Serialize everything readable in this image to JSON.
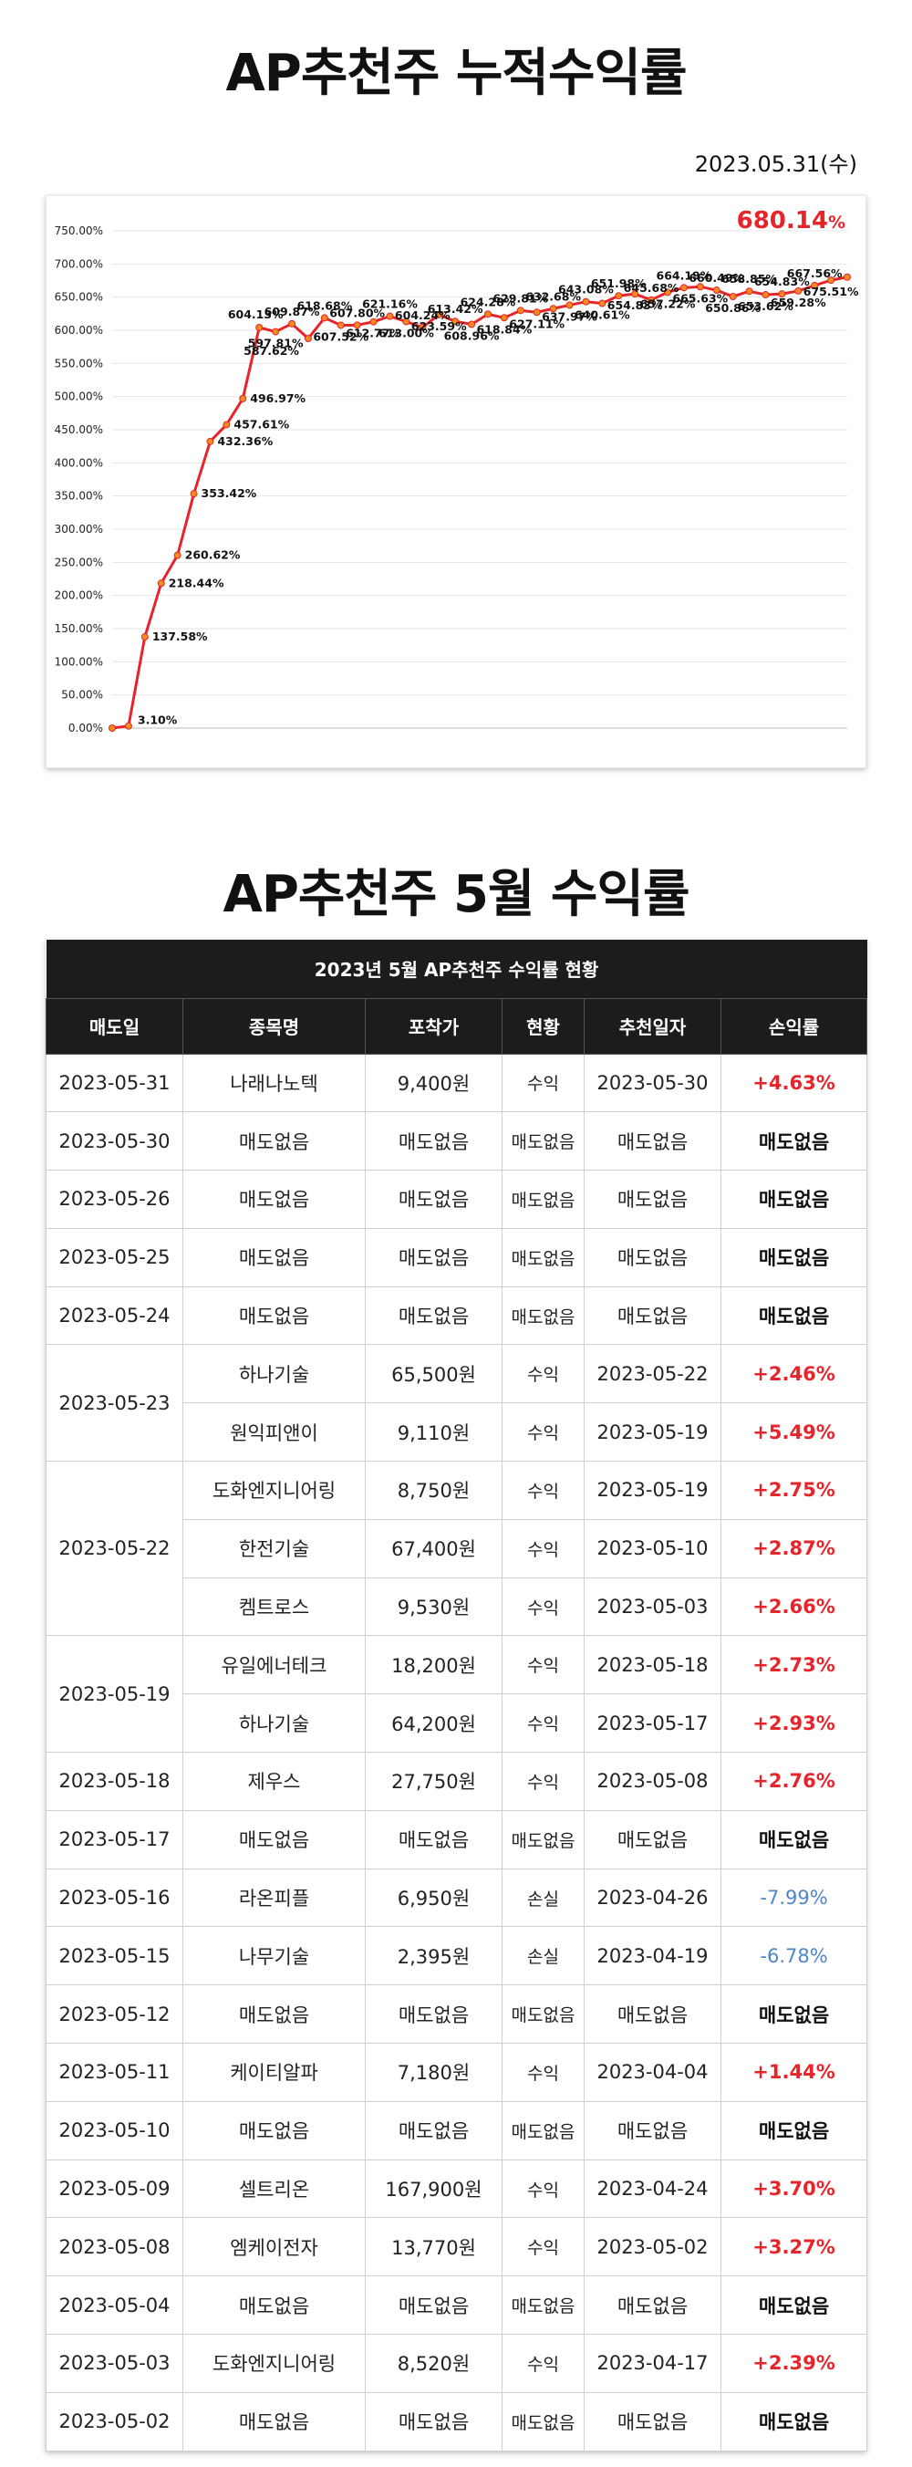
{
  "page_title": "AP추천주 누적수익률",
  "report_date": "2023.05.31(수)",
  "total_return": {
    "value": "680.14",
    "unit": "%"
  },
  "chart_data": {
    "type": "line",
    "title": "",
    "ylim": [
      0,
      750
    ],
    "y_ticks": [
      "0.00%",
      "50.00%",
      "100.00%",
      "150.00%",
      "200.00%",
      "250.00%",
      "300.00%",
      "350.00%",
      "400.00%",
      "450.00%",
      "500.00%",
      "550.00%",
      "600.00%",
      "650.00%",
      "700.00%",
      "750.00%"
    ],
    "grid": "horizontal",
    "line_color": "#e8242b",
    "marker_color": "#f28a1c",
    "series": [
      {
        "values": [
          0.0,
          3.1,
          137.58,
          218.44,
          260.62,
          353.42,
          432.36,
          457.61,
          496.97,
          604.13,
          597.81,
          609.87,
          587.62,
          618.68,
          607.52,
          607.8,
          612.77,
          621.16,
          613.0,
          604.24,
          623.59,
          613.42,
          608.96,
          624.28,
          618.84,
          629.81,
          627.11,
          632.68,
          637.97,
          643.08,
          640.61,
          651.98,
          654.83,
          645.68,
          657.22,
          664.19,
          665.63,
          660.49,
          650.86,
          658.85,
          653.62,
          654.83,
          659.28,
          667.56,
          675.51,
          680.14
        ]
      }
    ],
    "data_labels": [
      "3.10%",
      "137.58%",
      "218.44%",
      "260.62%",
      "353.42%",
      "432.36%",
      "457.61%",
      "496.97%",
      "604.13%",
      "597.81%",
      "609.87%",
      "587.62%",
      "618.68%",
      "607.52%",
      "607.80%",
      "612.77%",
      "621.16%",
      "613.00%",
      "604.24%",
      "623.59%",
      "613.42%",
      "608.96%",
      "624.28%",
      "618.84%",
      "629.81%",
      "627.11%",
      "632.68%",
      "637.97%",
      "643.08%",
      "640.61%",
      "651.98%",
      "654.83%",
      "645.68%",
      "657.22%",
      "664.19%",
      "665.63%",
      "660.49%",
      "650.86%",
      "658.85%",
      "653.62%",
      "654.83%",
      "659.28%",
      "667.56%",
      "675.51%"
    ]
  },
  "section_title": "AP추천주 5월 수익률",
  "table": {
    "caption": "2023년 5월 AP추천주 수익률 현황",
    "headers": [
      "매도일",
      "종목명",
      "포착가",
      "현황",
      "추천일자",
      "손익률"
    ],
    "groups": [
      {
        "sell_date": "2023-05-31",
        "rows": [
          {
            "name": "나래나노텍",
            "price": "9,400원",
            "status": "수익",
            "rec_date": "2023-05-30",
            "pl": "+4.63%",
            "pl_type": "gain"
          }
        ]
      },
      {
        "sell_date": "2023-05-30",
        "rows": [
          {
            "name": "매도없음",
            "price": "매도없음",
            "status": "매도없음",
            "rec_date": "매도없음",
            "pl": "매도없음",
            "pl_type": "none"
          }
        ]
      },
      {
        "sell_date": "2023-05-26",
        "rows": [
          {
            "name": "매도없음",
            "price": "매도없음",
            "status": "매도없음",
            "rec_date": "매도없음",
            "pl": "매도없음",
            "pl_type": "none"
          }
        ]
      },
      {
        "sell_date": "2023-05-25",
        "rows": [
          {
            "name": "매도없음",
            "price": "매도없음",
            "status": "매도없음",
            "rec_date": "매도없음",
            "pl": "매도없음",
            "pl_type": "none"
          }
        ]
      },
      {
        "sell_date": "2023-05-24",
        "rows": [
          {
            "name": "매도없음",
            "price": "매도없음",
            "status": "매도없음",
            "rec_date": "매도없음",
            "pl": "매도없음",
            "pl_type": "none"
          }
        ]
      },
      {
        "sell_date": "2023-05-23",
        "rows": [
          {
            "name": "하나기술",
            "price": "65,500원",
            "status": "수익",
            "rec_date": "2023-05-22",
            "pl": "+2.46%",
            "pl_type": "gain"
          },
          {
            "name": "원익피앤이",
            "price": "9,110원",
            "status": "수익",
            "rec_date": "2023-05-19",
            "pl": "+5.49%",
            "pl_type": "gain"
          }
        ]
      },
      {
        "sell_date": "2023-05-22",
        "rows": [
          {
            "name": "도화엔지니어링",
            "price": "8,750원",
            "status": "수익",
            "rec_date": "2023-05-19",
            "pl": "+2.75%",
            "pl_type": "gain"
          },
          {
            "name": "한전기술",
            "price": "67,400원",
            "status": "수익",
            "rec_date": "2023-05-10",
            "pl": "+2.87%",
            "pl_type": "gain"
          },
          {
            "name": "켐트로스",
            "price": "9,530원",
            "status": "수익",
            "rec_date": "2023-05-03",
            "pl": "+2.66%",
            "pl_type": "gain"
          }
        ]
      },
      {
        "sell_date": "2023-05-19",
        "rows": [
          {
            "name": "유일에너테크",
            "price": "18,200원",
            "status": "수익",
            "rec_date": "2023-05-18",
            "pl": "+2.73%",
            "pl_type": "gain"
          },
          {
            "name": "하나기술",
            "price": "64,200원",
            "status": "수익",
            "rec_date": "2023-05-17",
            "pl": "+2.93%",
            "pl_type": "gain"
          }
        ]
      },
      {
        "sell_date": "2023-05-18",
        "rows": [
          {
            "name": "제우스",
            "price": "27,750원",
            "status": "수익",
            "rec_date": "2023-05-08",
            "pl": "+2.76%",
            "pl_type": "gain"
          }
        ]
      },
      {
        "sell_date": "2023-05-17",
        "rows": [
          {
            "name": "매도없음",
            "price": "매도없음",
            "status": "매도없음",
            "rec_date": "매도없음",
            "pl": "매도없음",
            "pl_type": "none"
          }
        ]
      },
      {
        "sell_date": "2023-05-16",
        "rows": [
          {
            "name": "라온피플",
            "price": "6,950원",
            "status": "손실",
            "rec_date": "2023-04-26",
            "pl": "-7.99%",
            "pl_type": "loss"
          }
        ]
      },
      {
        "sell_date": "2023-05-15",
        "rows": [
          {
            "name": "나무기술",
            "price": "2,395원",
            "status": "손실",
            "rec_date": "2023-04-19",
            "pl": "-6.78%",
            "pl_type": "loss"
          }
        ]
      },
      {
        "sell_date": "2023-05-12",
        "rows": [
          {
            "name": "매도없음",
            "price": "매도없음",
            "status": "매도없음",
            "rec_date": "매도없음",
            "pl": "매도없음",
            "pl_type": "none"
          }
        ]
      },
      {
        "sell_date": "2023-05-11",
        "rows": [
          {
            "name": "케이티알파",
            "price": "7,180원",
            "status": "수익",
            "rec_date": "2023-04-04",
            "pl": "+1.44%",
            "pl_type": "gain"
          }
        ]
      },
      {
        "sell_date": "2023-05-10",
        "rows": [
          {
            "name": "매도없음",
            "price": "매도없음",
            "status": "매도없음",
            "rec_date": "매도없음",
            "pl": "매도없음",
            "pl_type": "none"
          }
        ]
      },
      {
        "sell_date": "2023-05-09",
        "rows": [
          {
            "name": "셀트리온",
            "price": "167,900원",
            "status": "수익",
            "rec_date": "2023-04-24",
            "pl": "+3.70%",
            "pl_type": "gain"
          }
        ]
      },
      {
        "sell_date": "2023-05-08",
        "rows": [
          {
            "name": "엠케이전자",
            "price": "13,770원",
            "status": "수익",
            "rec_date": "2023-05-02",
            "pl": "+3.27%",
            "pl_type": "gain"
          }
        ]
      },
      {
        "sell_date": "2023-05-04",
        "rows": [
          {
            "name": "매도없음",
            "price": "매도없음",
            "status": "매도없음",
            "rec_date": "매도없음",
            "pl": "매도없음",
            "pl_type": "none"
          }
        ]
      },
      {
        "sell_date": "2023-05-03",
        "rows": [
          {
            "name": "도화엔지니어링",
            "price": "8,520원",
            "status": "수익",
            "rec_date": "2023-04-17",
            "pl": "+2.39%",
            "pl_type": "gain"
          }
        ]
      },
      {
        "sell_date": "2023-05-02",
        "rows": [
          {
            "name": "매도없음",
            "price": "매도없음",
            "status": "매도없음",
            "rec_date": "매도없음",
            "pl": "매도없음",
            "pl_type": "none"
          }
        ]
      }
    ]
  }
}
